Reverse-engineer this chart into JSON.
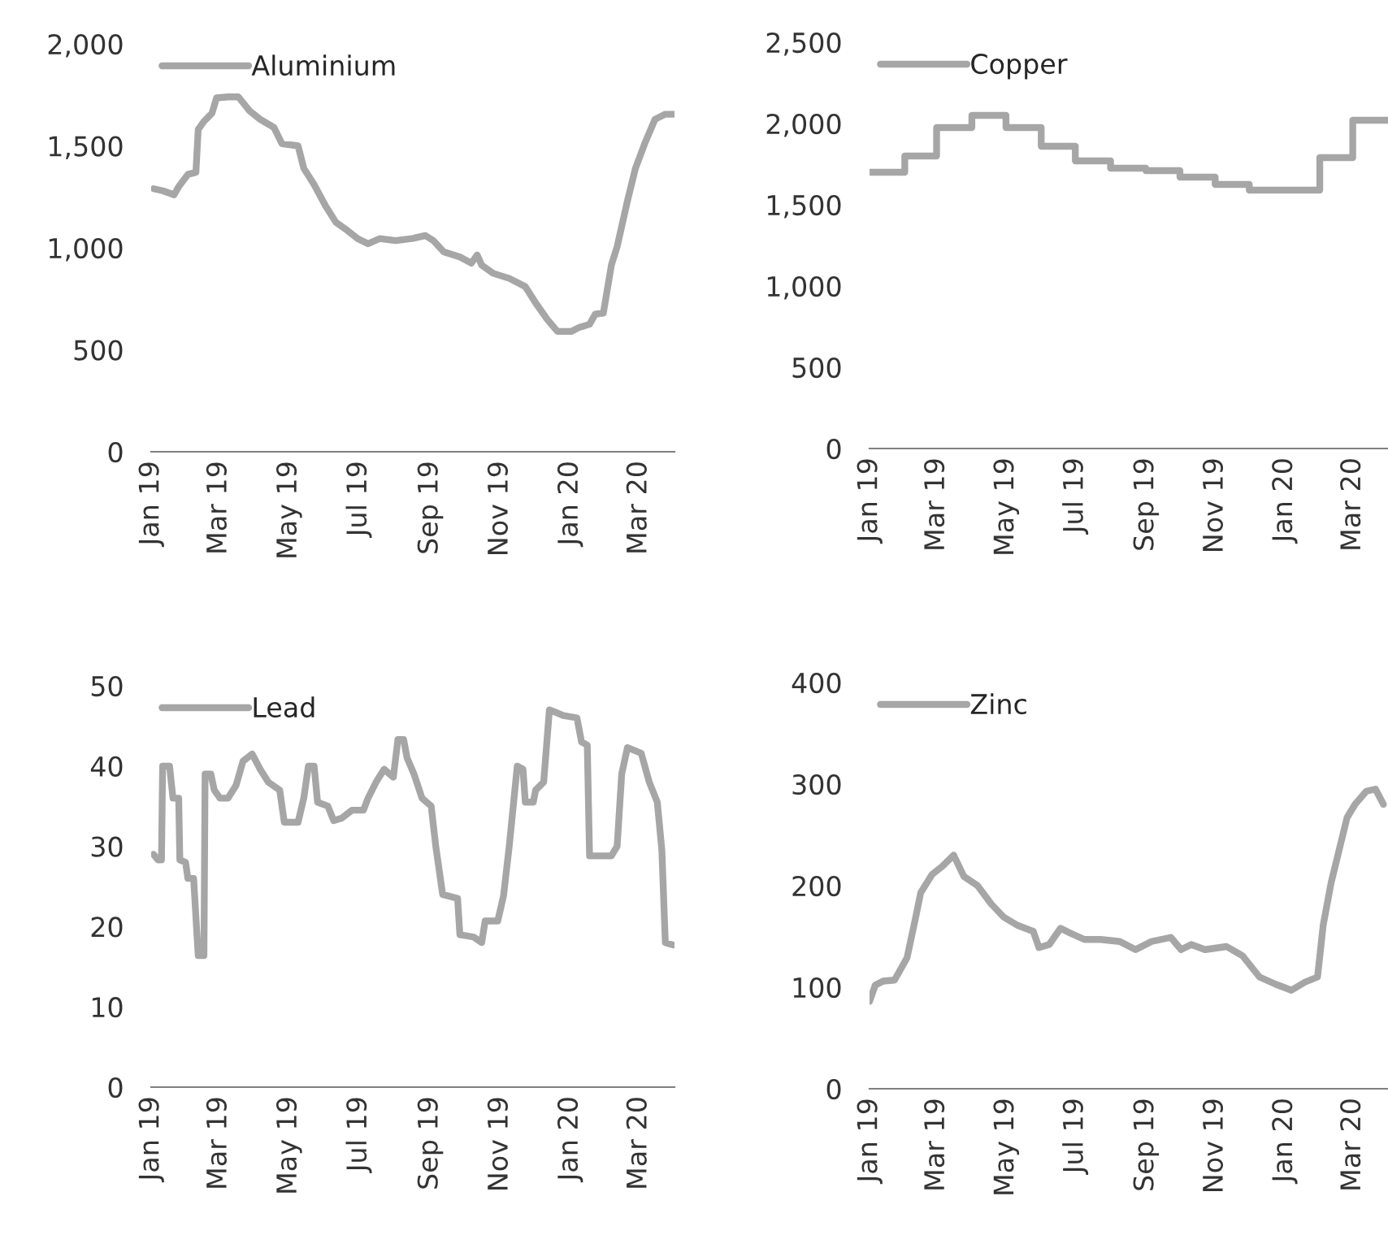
{
  "chart_data": [
    {
      "type": "line",
      "xlim": [
        "2019-01-01",
        "2020-04-01"
      ],
      "ylim": [
        0,
        2000
      ],
      "yticks": [
        0,
        {
          "value": 500,
          "label": "500"
        },
        {
          "value": 1000,
          "label": "1,000"
        },
        {
          "value": 1500,
          "label": "1,500"
        },
        {
          "value": 2000,
          "label": "2,000"
        }
      ],
      "xticks": [
        {
          "value": "2019-01-01",
          "label": "Jan 19"
        },
        {
          "value": "2019-03-01",
          "label": "Mar 19"
        },
        {
          "value": "2019-05-01",
          "label": "May 19"
        },
        {
          "value": "2019-07-01",
          "label": "Jul 19"
        },
        {
          "value": "2019-09-01",
          "label": "Sep 19"
        },
        {
          "value": "2019-11-01",
          "label": "Nov 19"
        },
        {
          "value": "2020-01-01",
          "label": "Jan 20"
        },
        {
          "value": "2020-03-01",
          "label": "Mar 20"
        }
      ],
      "legend": "top left",
      "grid": false,
      "series": [
        {
          "name": "Aluminium",
          "color": "#a6a6a6",
          "x": [
            "2019-01-03",
            "2019-01-11",
            "2019-01-21",
            "2019-01-25",
            "2019-02-02",
            "2019-02-09",
            "2019-02-11",
            "2019-02-16",
            "2019-02-23",
            "2019-02-27",
            "2019-03-09",
            "2019-03-18",
            "2019-03-28",
            "2019-04-06",
            "2019-04-18",
            "2019-04-25",
            "2019-05-09",
            "2019-05-14",
            "2019-05-23",
            "2019-06-02",
            "2019-06-11",
            "2019-06-21",
            "2019-06-30",
            "2019-07-09",
            "2019-07-19",
            "2019-08-02",
            "2019-08-16",
            "2019-08-28",
            "2019-09-04",
            "2019-09-13",
            "2019-09-27",
            "2019-10-07",
            "2019-10-12",
            "2019-10-16",
            "2019-10-26",
            "2019-11-09",
            "2019-11-23",
            "2019-12-02",
            "2019-12-12",
            "2019-12-21",
            "2020-01-02",
            "2020-01-09",
            "2020-01-18",
            "2020-01-23",
            "2020-01-30",
            "2020-02-06",
            "2020-02-11",
            "2020-02-20",
            "2020-02-27",
            "2020-03-06",
            "2020-03-15",
            "2020-03-24",
            "2020-04-01"
          ],
          "values": [
            1290,
            1280,
            1260,
            1300,
            1360,
            1370,
            1580,
            1620,
            1660,
            1735,
            1740,
            1740,
            1670,
            1630,
            1590,
            1510,
            1500,
            1390,
            1310,
            1205,
            1125,
            1085,
            1045,
            1020,
            1045,
            1035,
            1045,
            1060,
            1035,
            980,
            955,
            925,
            965,
            915,
            875,
            850,
            810,
            730,
            650,
            590,
            590,
            610,
            625,
            675,
            680,
            915,
            1005,
            1230,
            1390,
            1510,
            1630,
            1655,
            1655
          ]
        }
      ]
    },
    {
      "type": "step",
      "xlim": [
        "2019-01-01",
        "2020-04-01"
      ],
      "ylim": [
        0,
        2500
      ],
      "yticks": [
        0,
        {
          "value": 500,
          "label": "500"
        },
        {
          "value": 1000,
          "label": "1,000"
        },
        {
          "value": 1500,
          "label": "1,500"
        },
        {
          "value": 2000,
          "label": "2,000"
        },
        {
          "value": 2500,
          "label": "2,500"
        }
      ],
      "xticks": [
        {
          "value": "2019-01-01",
          "label": "Jan 19"
        },
        {
          "value": "2019-03-01",
          "label": "Mar 19"
        },
        {
          "value": "2019-05-01",
          "label": "May 19"
        },
        {
          "value": "2019-07-01",
          "label": "Jul 19"
        },
        {
          "value": "2019-09-01",
          "label": "Sep 19"
        },
        {
          "value": "2019-11-01",
          "label": "Nov 19"
        },
        {
          "value": "2020-01-01",
          "label": "Jan 20"
        },
        {
          "value": "2020-03-01",
          "label": "Mar 20"
        }
      ],
      "legend": "top left",
      "grid": false,
      "series": [
        {
          "name": "Copper",
          "color": "#a6a6a6",
          "x": [
            "2019-01-01",
            "2019-02-01",
            "2019-03-01",
            "2019-04-01",
            "2019-05-01",
            "2019-06-01",
            "2019-07-01",
            "2019-08-01",
            "2019-09-01",
            "2019-10-01",
            "2019-11-01",
            "2019-12-01",
            "2020-01-01",
            "2020-02-01",
            "2020-03-01",
            "2020-04-01"
          ],
          "values": [
            1700,
            1800,
            1975,
            2050,
            1975,
            1860,
            1770,
            1725,
            1710,
            1670,
            1625,
            1590,
            1590,
            1790,
            2020,
            2020
          ]
        }
      ]
    },
    {
      "type": "line",
      "xlim": [
        "2019-01-01",
        "2020-04-01"
      ],
      "ylim": [
        0,
        50
      ],
      "yticks": [
        0,
        10,
        20,
        30,
        40,
        50
      ],
      "xticks": [
        {
          "value": "2019-01-01",
          "label": "Jan 19"
        },
        {
          "value": "2019-03-01",
          "label": "Mar 19"
        },
        {
          "value": "2019-05-01",
          "label": "May 19"
        },
        {
          "value": "2019-07-01",
          "label": "Jul 19"
        },
        {
          "value": "2019-09-01",
          "label": "Sep 19"
        },
        {
          "value": "2019-11-01",
          "label": "Nov 19"
        },
        {
          "value": "2020-01-01",
          "label": "Jan 20"
        },
        {
          "value": "2020-03-01",
          "label": "Mar 20"
        }
      ],
      "legend": "top left",
      "grid": false,
      "series": [
        {
          "name": "Lead",
          "color": "#a6a6a6",
          "x": [
            "2019-01-03",
            "2019-01-07",
            "2019-01-10",
            "2019-01-11",
            "2019-01-17",
            "2019-01-20",
            "2019-01-25",
            "2019-01-26",
            "2019-01-31",
            "2019-02-02",
            "2019-02-07",
            "2019-02-11",
            "2019-02-16",
            "2019-02-17",
            "2019-02-22",
            "2019-02-25",
            "2019-03-02",
            "2019-03-09",
            "2019-03-16",
            "2019-03-22",
            "2019-03-30",
            "2019-04-06",
            "2019-04-13",
            "2019-04-23",
            "2019-04-27",
            "2019-05-09",
            "2019-05-14",
            "2019-05-18",
            "2019-05-23",
            "2019-05-26",
            "2019-06-04",
            "2019-06-09",
            "2019-06-16",
            "2019-06-25",
            "2019-07-05",
            "2019-07-09",
            "2019-07-16",
            "2019-07-23",
            "2019-07-31",
            "2019-08-04",
            "2019-08-09",
            "2019-08-12",
            "2019-08-18",
            "2019-08-25",
            "2019-09-02",
            "2019-09-06",
            "2019-09-12",
            "2019-09-25",
            "2019-09-27",
            "2019-10-09",
            "2019-10-16",
            "2019-10-19",
            "2019-10-30",
            "2019-11-04",
            "2019-11-09",
            "2019-11-16",
            "2019-11-21",
            "2019-11-23",
            "2019-11-30",
            "2019-12-02",
            "2019-12-09",
            "2019-12-14",
            "2019-12-21",
            "2019-12-26",
            "2020-01-07",
            "2020-01-11",
            "2020-01-16",
            "2020-01-18",
            "2020-02-06",
            "2020-02-11",
            "2020-02-15",
            "2020-02-20",
            "2020-03-03",
            "2020-03-10",
            "2020-03-17",
            "2020-03-21",
            "2020-03-24",
            "2020-03-31"
          ],
          "values": [
            29,
            28.3,
            28.3,
            40,
            40,
            36,
            36,
            28.3,
            28,
            26,
            26,
            16.4,
            16.4,
            39,
            39,
            37,
            36,
            36,
            37.6,
            40.6,
            41.5,
            39.6,
            38,
            37,
            33,
            33,
            36,
            40,
            40,
            35.5,
            35,
            33.2,
            33.5,
            34.5,
            34.5,
            36,
            38,
            39.6,
            38.6,
            43.3,
            43.3,
            41,
            39,
            36,
            35,
            30,
            24,
            23.5,
            19,
            18.7,
            18,
            20.7,
            20.7,
            23.8,
            30,
            40,
            39.6,
            35.5,
            35.5,
            37,
            38,
            47,
            46.6,
            46.3,
            46,
            43,
            42.6,
            28.8,
            28.8,
            30,
            39,
            42.3,
            41.6,
            38,
            35.5,
            29.5,
            18,
            17.7
          ]
        }
      ]
    },
    {
      "type": "line",
      "xlim": [
        "2019-01-01",
        "2020-04-01"
      ],
      "ylim": [
        0,
        400
      ],
      "yticks": [
        0,
        100,
        200,
        300,
        400
      ],
      "xticks": [
        {
          "value": "2019-01-01",
          "label": "Jan 19"
        },
        {
          "value": "2019-03-01",
          "label": "Mar 19"
        },
        {
          "value": "2019-05-01",
          "label": "May 19"
        },
        {
          "value": "2019-07-01",
          "label": "Jul 19"
        },
        {
          "value": "2019-09-01",
          "label": "Sep 19"
        },
        {
          "value": "2019-11-01",
          "label": "Nov 19"
        },
        {
          "value": "2020-01-01",
          "label": "Jan 20"
        },
        {
          "value": "2020-03-01",
          "label": "Mar 20"
        }
      ],
      "legend": "top left",
      "grid": false,
      "series": [
        {
          "name": "Zinc",
          "color": "#a6a6a6",
          "x": [
            "2019-01-01",
            "2019-01-06",
            "2019-01-13",
            "2019-01-23",
            "2019-01-27",
            "2019-02-03",
            "2019-02-11",
            "2019-02-15",
            "2019-02-25",
            "2019-03-06",
            "2019-03-16",
            "2019-03-25",
            "2019-04-06",
            "2019-04-18",
            "2019-04-29",
            "2019-05-11",
            "2019-05-25",
            "2019-05-30",
            "2019-06-08",
            "2019-06-18",
            "2019-06-27",
            "2019-07-09",
            "2019-07-23",
            "2019-08-09",
            "2019-08-23",
            "2019-09-06",
            "2019-09-23",
            "2019-10-02",
            "2019-10-11",
            "2019-10-23",
            "2019-11-11",
            "2019-11-25",
            "2019-12-10",
            "2019-12-24",
            "2020-01-07",
            "2020-01-19",
            "2020-01-30",
            "2020-02-04",
            "2020-02-11",
            "2020-02-18",
            "2020-02-25",
            "2020-03-03",
            "2020-03-13",
            "2020-03-21",
            "2020-03-28"
          ],
          "values": [
            86,
            102,
            106,
            107,
            115,
            129,
            171,
            193,
            211,
            219,
            230,
            209,
            200,
            182,
            169,
            161,
            155,
            139,
            142,
            158,
            153,
            147,
            147,
            145,
            137,
            145,
            149,
            137,
            142,
            137,
            140,
            131,
            110,
            103,
            97,
            105,
            110,
            161,
            203,
            235,
            267,
            280,
            293,
            295,
            280
          ]
        }
      ]
    }
  ]
}
